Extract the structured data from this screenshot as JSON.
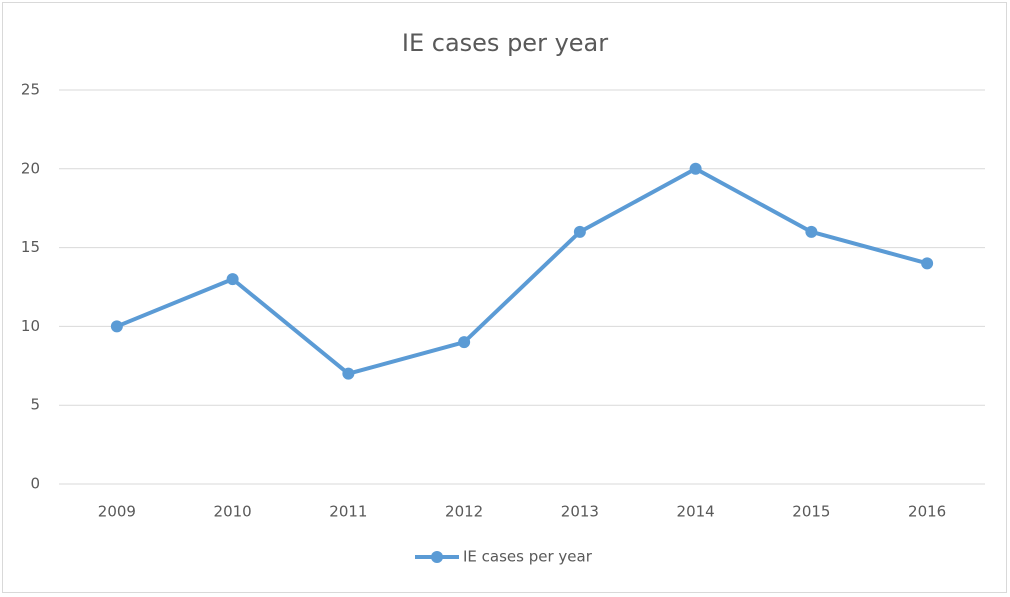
{
  "chart_data": {
    "type": "line",
    "title": "IE cases per year",
    "categories": [
      "2009",
      "2010",
      "2011",
      "2012",
      "2013",
      "2014",
      "2015",
      "2016"
    ],
    "series": [
      {
        "name": "IE cases per year",
        "color": "#5b9bd5",
        "values": [
          10,
          13,
          7,
          9,
          16,
          20,
          16,
          14
        ]
      }
    ],
    "ylim": [
      0,
      25
    ],
    "yticks": [
      0,
      5,
      10,
      15,
      20,
      25
    ],
    "grid": true,
    "legend": "bottom"
  }
}
